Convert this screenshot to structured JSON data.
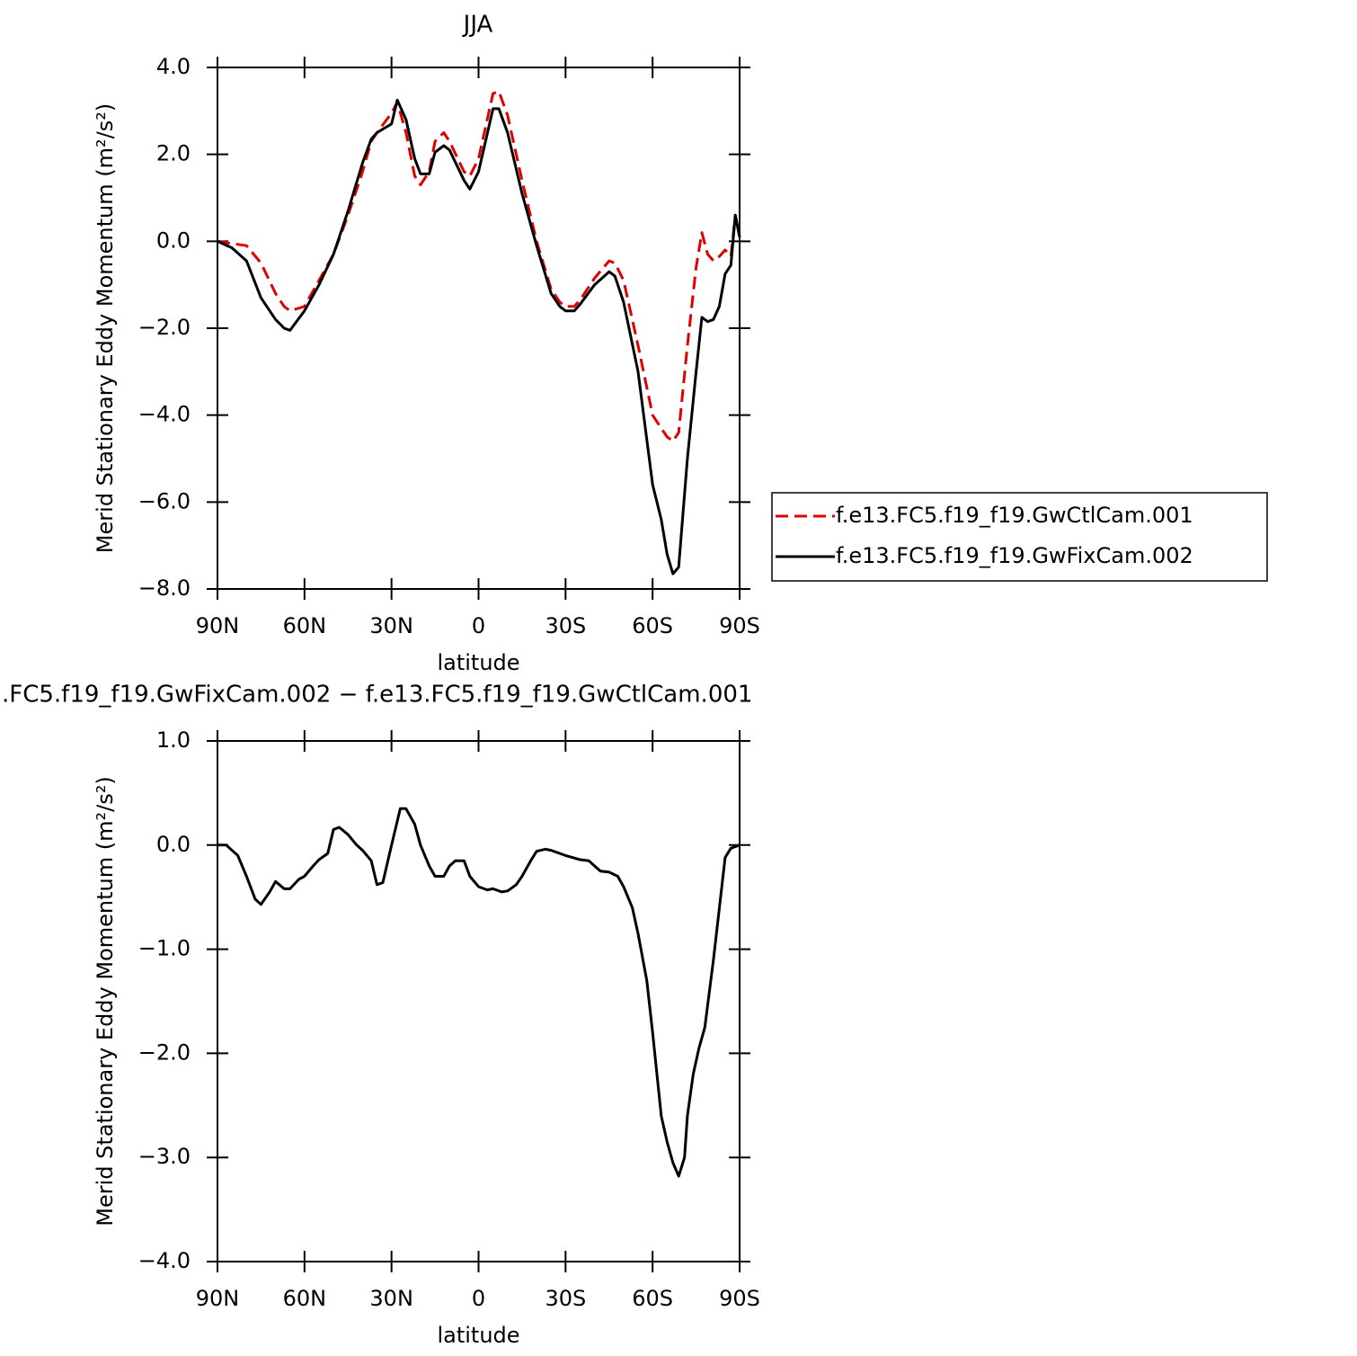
{
  "chart_data": [
    {
      "type": "line",
      "title": "JJA",
      "xlabel": "latitude",
      "ylabel": "Merid Stationary Eddy Momentum (m²/s²)",
      "xlim": [
        90,
        -90
      ],
      "xticks": [
        {
          "value": 90,
          "label": "90N"
        },
        {
          "value": 60,
          "label": "60N"
        },
        {
          "value": 30,
          "label": "30N"
        },
        0,
        {
          "value": -30,
          "label": "30S"
        },
        {
          "value": -60,
          "label": "60S"
        },
        {
          "value": -90,
          "label": "90S"
        }
      ],
      "ylim": [
        -8,
        4
      ],
      "yticks": [
        {
          "value": 4,
          "label": "4.0"
        },
        {
          "value": 2,
          "label": "2.0"
        },
        {
          "value": 0,
          "label": "0.0"
        },
        {
          "value": -2,
          "label": "−2.0"
        },
        {
          "value": -4,
          "label": "−4.0"
        },
        {
          "value": -6,
          "label": "−6.0"
        },
        {
          "value": -8,
          "label": "−8.0"
        }
      ],
      "legend": "right",
      "x": [
        90,
        85,
        80,
        75,
        70,
        67,
        65,
        60,
        55,
        50,
        45,
        40,
        37,
        35,
        30,
        28,
        25,
        22,
        20,
        17,
        15,
        12,
        10,
        5,
        3,
        0,
        -5,
        -7,
        -10,
        -15,
        -20,
        -25,
        -28,
        -30,
        -33,
        -35,
        -40,
        -45,
        -47,
        -50,
        -55,
        -60,
        -63,
        -65,
        -67,
        -69,
        -72,
        -75,
        -77,
        -79,
        -81,
        -83,
        -85,
        -87,
        -88.5,
        -90
      ],
      "series": [
        {
          "name": "f.e13.FC5.f19_f19.GwCtlCam.001",
          "color": "#e00000",
          "dash": true,
          "values": [
            0.0,
            -0.05,
            -0.1,
            -0.5,
            -1.2,
            -1.5,
            -1.6,
            -1.5,
            -0.9,
            -0.3,
            0.6,
            1.6,
            2.3,
            2.5,
            2.95,
            3.2,
            2.5,
            1.5,
            1.3,
            1.6,
            2.3,
            2.5,
            2.3,
            1.6,
            1.5,
            1.9,
            3.4,
            3.45,
            2.9,
            1.4,
            0.0,
            -1.1,
            -1.4,
            -1.5,
            -1.5,
            -1.35,
            -0.85,
            -0.45,
            -0.5,
            -0.9,
            -2.4,
            -4.0,
            -4.3,
            -4.5,
            -4.6,
            -4.4,
            -2.4,
            -0.6,
            0.2,
            -0.3,
            -0.45,
            -0.35,
            -0.2,
            -0.35,
            0.6,
            0.1
          ]
        },
        {
          "name": "f.e13.FC5.f19_f19.GwFixCam.002",
          "color": "#000000",
          "dash": false,
          "values": [
            0.0,
            -0.15,
            -0.45,
            -1.3,
            -1.8,
            -2.0,
            -2.05,
            -1.6,
            -1.0,
            -0.3,
            0.7,
            1.8,
            2.35,
            2.5,
            2.7,
            3.25,
            2.8,
            1.9,
            1.55,
            1.55,
            2.05,
            2.2,
            2.1,
            1.4,
            1.2,
            1.6,
            3.05,
            3.05,
            2.5,
            1.1,
            -0.1,
            -1.2,
            -1.5,
            -1.6,
            -1.6,
            -1.45,
            -1.0,
            -0.7,
            -0.8,
            -1.4,
            -3.0,
            -5.6,
            -6.4,
            -7.2,
            -7.65,
            -7.5,
            -5.0,
            -3.0,
            -1.75,
            -1.85,
            -1.8,
            -1.5,
            -0.75,
            -0.55,
            0.6,
            0.1
          ]
        }
      ]
    },
    {
      "type": "line",
      "title": ".FC5.f19_f19.GwFixCam.002 − f.e13.FC5.f19_f19.GwCtlCam.001",
      "xlabel": "latitude",
      "ylabel": "Merid Stationary Eddy Momentum (m²/s²)",
      "xlim": [
        90,
        -90
      ],
      "xticks": [
        {
          "value": 90,
          "label": "90N"
        },
        {
          "value": 60,
          "label": "60N"
        },
        {
          "value": 30,
          "label": "30N"
        },
        0,
        {
          "value": -30,
          "label": "30S"
        },
        {
          "value": -60,
          "label": "60S"
        },
        {
          "value": -90,
          "label": "90S"
        }
      ],
      "ylim": [
        -4,
        1
      ],
      "yticks": [
        {
          "value": 1,
          "label": "1.0"
        },
        {
          "value": 0,
          "label": "0.0"
        },
        {
          "value": -1,
          "label": "−1.0"
        },
        {
          "value": -2,
          "label": "−2.0"
        },
        {
          "value": -3,
          "label": "−3.0"
        },
        {
          "value": -4,
          "label": "−4.0"
        }
      ],
      "x": [
        90,
        87,
        83,
        80,
        77,
        75,
        72,
        70,
        67,
        65,
        62,
        60,
        57,
        55,
        52,
        50,
        48,
        45,
        42,
        40,
        37,
        35,
        33,
        30,
        27,
        25,
        22,
        20,
        17,
        15,
        12,
        10,
        8,
        5,
        3,
        0,
        -3,
        -5,
        -8,
        -10,
        -13,
        -15,
        -18,
        -20,
        -23,
        -25,
        -30,
        -35,
        -38,
        -40,
        -42,
        -45,
        -48,
        -50,
        -53,
        -55,
        -58,
        -60,
        -63,
        -65,
        -67,
        -69,
        -71,
        -72,
        -74,
        -76,
        -78,
        -81,
        -85,
        -87,
        -90
      ],
      "series": [
        {
          "color": "#000000",
          "dash": false,
          "values": [
            0,
            0.0,
            -0.1,
            -0.3,
            -0.52,
            -0.57,
            -0.45,
            -0.35,
            -0.42,
            -0.42,
            -0.33,
            -0.3,
            -0.2,
            -0.14,
            -0.08,
            0.15,
            0.17,
            0.1,
            0.0,
            -0.05,
            -0.15,
            -0.38,
            -0.36,
            0.0,
            0.35,
            0.35,
            0.2,
            0.0,
            -0.2,
            -0.3,
            -0.3,
            -0.2,
            -0.15,
            -0.15,
            -0.3,
            -0.4,
            -0.43,
            -0.42,
            -0.45,
            -0.44,
            -0.38,
            -0.3,
            -0.15,
            -0.06,
            -0.04,
            -0.05,
            -0.1,
            -0.14,
            -0.15,
            -0.2,
            -0.25,
            -0.26,
            -0.3,
            -0.4,
            -0.6,
            -0.85,
            -1.3,
            -1.8,
            -2.6,
            -2.85,
            -3.05,
            -3.18,
            -3.0,
            -2.6,
            -2.2,
            -1.95,
            -1.75,
            -1.1,
            -0.12,
            -0.03,
            0
          ]
        }
      ]
    }
  ]
}
